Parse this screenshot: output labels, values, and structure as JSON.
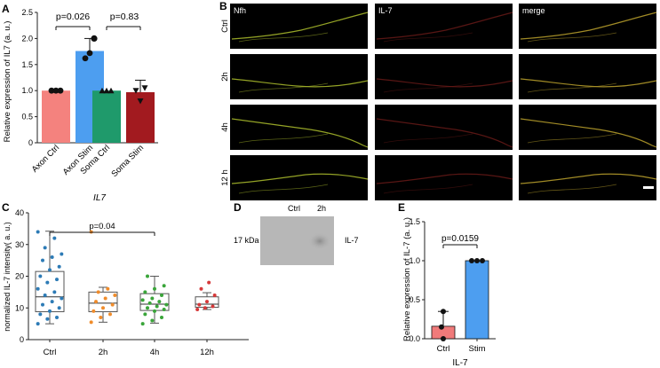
{
  "panelA": {
    "letter": "A",
    "ylabel": "Relative expression of IL7 (a. u.)",
    "xtitle": "IL7",
    "yticks": [
      "0",
      "0.5",
      "1.0",
      "1.5",
      "2.0",
      "2.5"
    ],
    "pvalues": [
      "p=0.026",
      "p=0.83"
    ],
    "colors": {
      "axon_ctrl": "#f4827e",
      "axon_stim": "#4d9ef0",
      "soma_ctrl": "#1f9a6b",
      "soma_stim": "#a21a1f"
    }
  },
  "panelB": {
    "letter": "B",
    "columns": [
      "Nfh",
      "IL-7",
      "merge"
    ],
    "rows": [
      "Ctrl",
      "2h",
      "4h",
      "12 h"
    ]
  },
  "panelC": {
    "letter": "C",
    "ylabel": "normalized IL-7 intensity( a. u.)",
    "yticks": [
      "0",
      "10",
      "20",
      "30",
      "40"
    ],
    "pvalue": "p=0.04",
    "colors": {
      "ctrl": "#2d7bb6",
      "h2": "#f08c2b",
      "h4": "#3aa53a",
      "h12": "#d6393a"
    }
  },
  "panelD": {
    "letter": "D",
    "lanes": [
      "Ctrl",
      "2h"
    ],
    "mw": "17 kDa",
    "band": "IL-7"
  },
  "panelE": {
    "letter": "E",
    "ylabel": "Relative expression of IL-7 (a. u.)",
    "xtitle": "IL-7",
    "yticks": [
      "0.0",
      "0.5",
      "1.0",
      "1.5"
    ],
    "pvalue": "p=0.0159",
    "colors": {
      "ctrl": "#f07a7a",
      "stim": "#4d9ef0"
    }
  },
  "chart_data": [
    {
      "panel": "A",
      "type": "bar",
      "categories": [
        "Axon Ctrl",
        "Axon Stim",
        "Soma Ctrl",
        "Soma Stim"
      ],
      "values": [
        1.0,
        1.76,
        1.0,
        0.97
      ],
      "errors": [
        0.0,
        0.24,
        0.0,
        0.23
      ],
      "points": [
        [
          1,
          1,
          1
        ],
        [
          1.62,
          1.72,
          2.0
        ],
        [
          1,
          1,
          1
        ],
        [
          1.0,
          0.8,
          1.05
        ]
      ],
      "xlabel": "IL7",
      "ylabel": "Relative expression of IL7 (a. u.)",
      "ylim": [
        0,
        2.5
      ]
    },
    {
      "panel": "C",
      "type": "box",
      "categories": [
        "Ctrl",
        "2h",
        "4h",
        "12h"
      ],
      "boxes": [
        {
          "min": 5,
          "q1": 8.8,
          "median": 13.5,
          "q3": 21.5,
          "max": 34.2
        },
        {
          "min": 5.5,
          "q1": 8.8,
          "median": 11.5,
          "q3": 15,
          "max": 16.5
        },
        {
          "min": 5.2,
          "q1": 9.2,
          "median": 11.2,
          "q3": 14.5,
          "max": 20
        },
        {
          "min": 9.5,
          "q1": 10.2,
          "median": 11.2,
          "q3": 13.5,
          "max": 14.8
        }
      ],
      "points": [
        [
          5,
          6.5,
          7,
          8,
          9,
          10,
          11,
          12,
          13,
          14,
          15,
          16,
          18,
          19,
          20,
          22,
          23,
          25,
          26,
          27,
          29,
          32,
          34
        ],
        [
          5.5,
          7,
          8,
          9,
          10,
          11,
          12,
          13,
          14,
          15,
          16,
          34
        ],
        [
          5,
          6,
          7,
          8,
          9,
          9.5,
          10,
          10.5,
          11,
          11.5,
          12,
          12.5,
          13,
          14,
          15,
          16,
          17,
          20
        ],
        [
          9.5,
          10,
          10.5,
          11,
          12,
          14,
          16,
          18
        ]
      ],
      "xlabel": "",
      "ylabel": "normalized IL-7 intensity( a. u.)",
      "ylim": [
        0,
        40
      ]
    },
    {
      "panel": "E",
      "type": "bar",
      "categories": [
        "Ctrl",
        "Stim"
      ],
      "values": [
        0.16,
        1.0
      ],
      "errors": [
        0.19,
        0.0
      ],
      "points": [
        [
          0.35,
          0.15,
          0.0
        ],
        [
          1.0,
          1.0,
          1.0
        ]
      ],
      "xlabel": "IL-7",
      "ylabel": "Relative expression of IL-7 (a. u.)",
      "ylim": [
        0,
        1.5
      ]
    }
  ]
}
